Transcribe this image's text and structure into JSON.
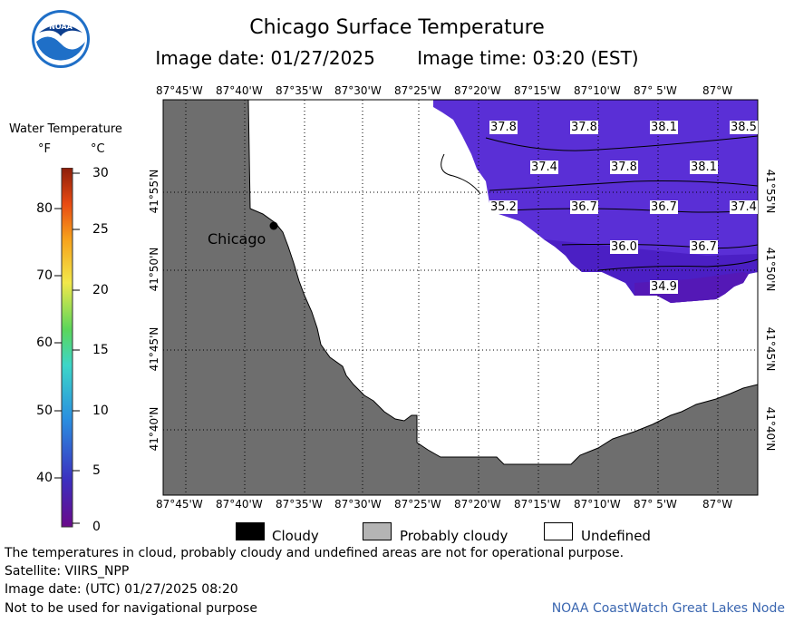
{
  "header": {
    "title": "Chicago Surface Temperature",
    "image_date": "Image date: 01/27/2025",
    "image_time": "Image time: 03:20 (EST)"
  },
  "legend": {
    "title": "Water Temperature",
    "unit_f": "°F",
    "unit_c": "°C",
    "fahrenheit_ticks": [
      "80",
      "70",
      "60",
      "50",
      "40"
    ],
    "celsius_ticks": [
      "30",
      "25",
      "20",
      "15",
      "10",
      "5",
      "0"
    ],
    "colors": [
      "#6a0a8a",
      "#3c2fbf",
      "#2a8fe0",
      "#3cd6c8",
      "#5bd65a",
      "#f2e84a",
      "#f7a21c",
      "#e84a12",
      "#8c1d0a"
    ]
  },
  "map": {
    "longitude_labels": [
      "87°45'W",
      "87°40'W",
      "87°35'W",
      "87°30'W",
      "87°25'W",
      "87°20'W",
      "87°15'W",
      "87°10'W",
      "87° 5'W",
      "87°W"
    ],
    "latitude_labels": [
      "41°55'N",
      "41°50'N",
      "41°45'N",
      "41°40'N"
    ],
    "city_label": "Chicago",
    "land_color": "#6e6e6e",
    "water_color": "#5a2fd6",
    "temperature_labels": [
      "37.8",
      "37.8",
      "38.1",
      "38.5",
      "37.4",
      "37.8",
      "38.1",
      "35.2",
      "36.7",
      "36.7",
      "37.4",
      "36.0",
      "36.7",
      "34.9"
    ]
  },
  "key": {
    "cloudy": "Cloudy",
    "probably_cloudy": "Probably cloudy",
    "undefined": "Undefined",
    "cloudy_color": "#000000",
    "probably_cloudy_color": "#b4b4b4",
    "undefined_color": "#ffffff"
  },
  "footer": {
    "disclaimer": "The temperatures in cloud, probably cloudy and undefined areas are not for operational purpose.",
    "satellite": "Satellite: VIIRS_NPP",
    "utc_date": "Image date: (UTC) 01/27/2025  08:20",
    "navigation": "Not to be used for navigational purpose",
    "credit": "NOAA CoastWatch Great Lakes Node"
  }
}
